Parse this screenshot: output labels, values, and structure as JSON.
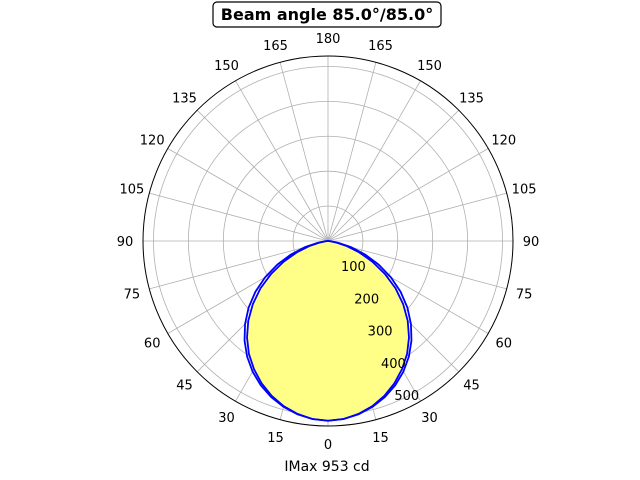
{
  "chart_data": {
    "type": "polar",
    "title": "Beam angle 85.0°/85.0°",
    "xlabel": "IMax 953 cd",
    "angle_ticks": [
      "0",
      "15",
      "30",
      "45",
      "60",
      "75",
      "90",
      "105",
      "120",
      "135",
      "150",
      "165",
      "180",
      "165",
      "150",
      "135",
      "120",
      "105",
      "90",
      "75",
      "60",
      "45",
      "30",
      "15"
    ],
    "radial_ticks": [
      100,
      200,
      300,
      400,
      500
    ],
    "rmax": 530,
    "grid": true,
    "fill_color": "#ffff88",
    "line_color": "#0000ff",
    "series": [
      {
        "angles": [
          0,
          5,
          10,
          15,
          20,
          25,
          30,
          35,
          40,
          45,
          50,
          55,
          60,
          65,
          70,
          75,
          80,
          85,
          90
        ],
        "values": [
          515,
          512,
          503,
          490,
          472,
          450,
          424,
          395,
          361,
          323,
          281,
          236,
          188,
          140,
          95,
          54,
          22,
          5,
          0
        ]
      },
      {
        "angles": [
          0,
          5,
          10,
          15,
          20,
          25,
          30,
          35,
          40,
          45,
          50,
          55,
          60,
          65,
          70,
          75,
          80,
          85,
          90
        ],
        "values": [
          515,
          512,
          504,
          492,
          476,
          456,
          432,
          404,
          372,
          336,
          297,
          254,
          208,
          160,
          113,
          68,
          30,
          8,
          0
        ]
      }
    ]
  }
}
